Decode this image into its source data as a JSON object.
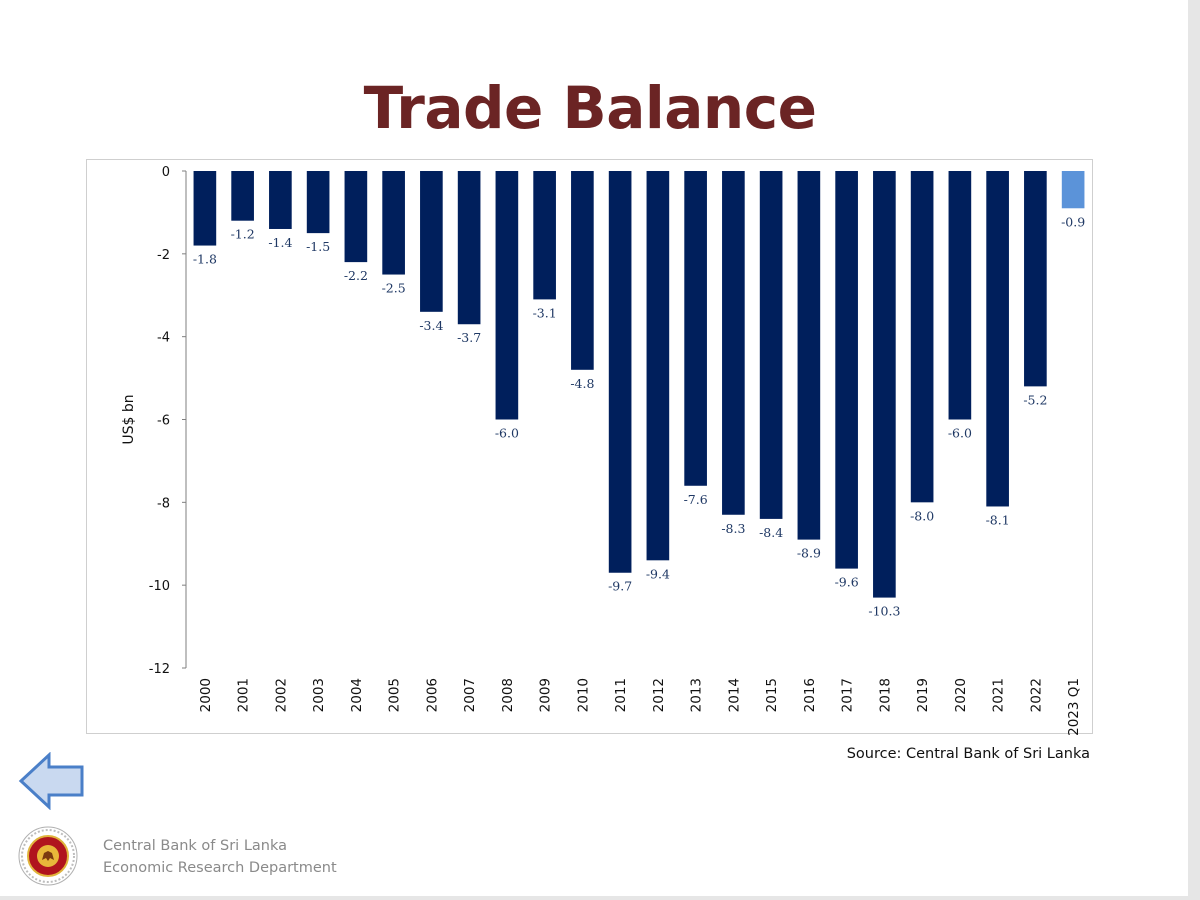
{
  "slide": {
    "title": "Trade Balance",
    "source": "Source: Central Bank of Sri Lanka",
    "footer_line1": "Central Bank of Sri Lanka",
    "footer_line2": "Economic Research Department",
    "back_icon": "arrow-left-icon",
    "logo_icon": "central-bank-seal-icon"
  },
  "colors": {
    "title": "#6b2424",
    "bar": "#001f5c",
    "bar_highlight": "#5b93d9",
    "label": "#1f3864"
  },
  "chart_data": {
    "type": "bar",
    "title": "",
    "xlabel": "",
    "ylabel": "US$ bn",
    "ylim": [
      -12,
      0
    ],
    "yticks": [
      0,
      -2,
      -4,
      -6,
      -8,
      -10,
      -12
    ],
    "grid": false,
    "legend": "none",
    "categories": [
      "2000",
      "2001",
      "2002",
      "2003",
      "2004",
      "2005",
      "2006",
      "2007",
      "2008",
      "2009",
      "2010",
      "2011",
      "2012",
      "2013",
      "2014",
      "2015",
      "2016",
      "2017",
      "2018",
      "2019",
      "2020",
      "2021",
      "2022",
      "2023 Q1"
    ],
    "values": [
      -1.8,
      -1.2,
      -1.4,
      -1.5,
      -2.2,
      -2.5,
      -3.4,
      -3.7,
      -6.0,
      -3.1,
      -4.8,
      -9.7,
      -9.4,
      -7.6,
      -8.3,
      -8.4,
      -8.9,
      -9.6,
      -10.3,
      -8.0,
      -6.0,
      -8.1,
      -5.2,
      -0.9
    ],
    "data_labels": [
      "-1.8",
      "-1.2",
      "-1.4",
      "-1.5",
      "-2.2",
      "-2.5",
      "-3.4",
      "-3.7",
      "-6.0",
      "-3.1",
      "-4.8",
      "-9.7",
      "-9.4",
      "-7.6",
      "-8.3",
      "-8.4",
      "-8.9",
      "-9.6",
      "-10.3",
      "-8.0",
      "-6.0",
      "-8.1",
      "-5.2",
      "-0.9"
    ],
    "highlight_category": "2023 Q1"
  }
}
